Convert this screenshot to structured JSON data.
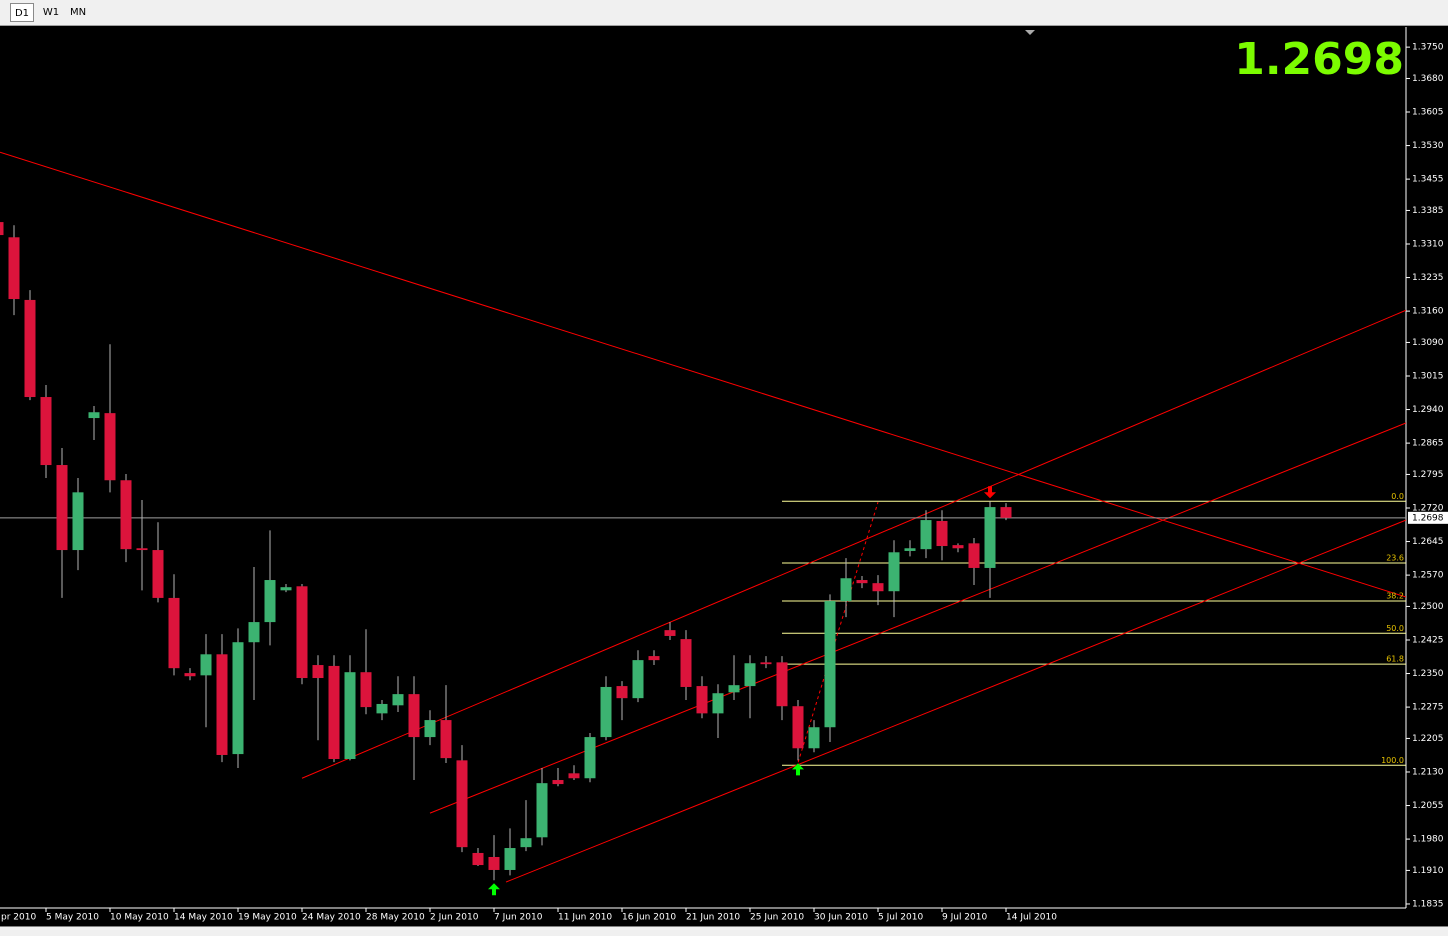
{
  "toolbar": {
    "timeframes": [
      "D1",
      "W1",
      "MN"
    ]
  },
  "chart_data": {
    "type": "candlestick",
    "categories": [
      "pr 2010",
      null,
      null,
      "5 May 2010",
      null,
      null,
      null,
      "10 May 2010",
      null,
      null,
      null,
      "14 May 2010",
      null,
      null,
      null,
      "19 May 2010",
      null,
      null,
      null,
      "24 May 2010",
      null,
      null,
      null,
      "28 May 2010",
      null,
      null,
      null,
      "2 Jun 2010",
      null,
      null,
      null,
      "7 Jun 2010",
      null,
      null,
      null,
      "11 Jun 2010",
      null,
      null,
      null,
      "16 Jun 2010",
      null,
      null,
      null,
      "21 Jun 2010",
      null,
      null,
      null,
      "25 Jun 2010",
      null,
      null,
      null,
      "30 Jun 2010",
      null,
      null,
      null,
      "5 Jul 2010",
      null,
      null,
      null,
      "9 Jul 2010",
      null,
      null,
      null,
      "14 Jul 2010"
    ],
    "open": [
      1.3359,
      1.3325,
      1.3185,
      1.2968,
      1.2816,
      1.2626,
      1.2921,
      1.2932,
      1.2782,
      1.263,
      1.2626,
      1.2519,
      1.2351,
      1.2346,
      1.2393,
      1.217,
      1.242,
      1.2465,
      1.2536,
      1.2545,
      1.2369,
      1.2367,
      1.2159,
      1.2353,
      1.2261,
      1.2279,
      1.2304,
      1.2208,
      1.2246,
      1.2156,
      1.1949,
      1.194,
      1.1911,
      1.1962,
      1.1984,
      1.2112,
      1.2127,
      1.2116,
      1.2208,
      1.2322,
      1.2295,
      1.2389,
      1.2447,
      1.2427,
      1.2322,
      1.2261,
      1.2308,
      1.2322,
      1.2375,
      1.2375,
      1.2277,
      1.2183,
      1.223,
      1.2512,
      1.2559,
      1.2552,
      1.2534,
      1.2624,
      1.2628,
      1.2691,
      1.2637,
      1.2641,
      1.2586,
      1.2722
    ],
    "high": [
      1.3363,
      1.3352,
      1.3207,
      1.2995,
      1.2854,
      1.2787,
      1.2948,
      1.3086,
      1.2796,
      1.2738,
      1.2688,
      1.2572,
      1.2362,
      1.2438,
      1.2438,
      1.2451,
      1.2588,
      1.267,
      1.255,
      1.255,
      1.2391,
      1.2391,
      1.2391,
      1.2449,
      1.2291,
      1.2344,
      1.2344,
      1.2268,
      1.2324,
      1.219,
      1.196,
      1.1989,
      1.2004,
      1.2067,
      1.2139,
      1.2139,
      1.2145,
      1.2217,
      1.2344,
      1.2333,
      1.2402,
      1.2402,
      1.2465,
      1.2447,
      1.2344,
      1.2326,
      1.2391,
      1.2391,
      1.2389,
      1.2389,
      1.2291,
      1.2246,
      1.2527,
      1.2608,
      1.2568,
      1.257,
      1.2648,
      1.2648,
      1.2715,
      1.2715,
      1.2641,
      1.2653,
      1.2735,
      1.2731
    ],
    "low": [
      1.3319,
      1.3151,
      1.2961,
      1.2787,
      1.2519,
      1.2581,
      1.2872,
      1.2755,
      1.2599,
      1.2536,
      1.2509,
      1.2346,
      1.2335,
      1.223,
      1.2152,
      1.2139,
      1.2291,
      1.2413,
      1.2532,
      1.2326,
      1.2201,
      1.2152,
      1.2156,
      1.2259,
      1.2246,
      1.2264,
      1.2112,
      1.219,
      1.215,
      1.1951,
      1.192,
      1.1888,
      1.1899,
      1.1953,
      1.1966,
      1.2098,
      1.2112,
      1.2107,
      1.2201,
      1.2246,
      1.2286,
      1.2369,
      1.2425,
      1.2291,
      1.225,
      1.2206,
      1.2291,
      1.225,
      1.2362,
      1.2246,
      1.2156,
      1.2174,
      1.2197,
      1.2476,
      1.2541,
      1.2503,
      1.2476,
      1.2612,
      1.2608,
      1.2603,
      1.2621,
      1.2548,
      1.2519,
      1.2693
    ],
    "close": [
      1.333,
      1.3187,
      1.2968,
      1.2816,
      1.2626,
      1.2755,
      1.2934,
      1.2782,
      1.2628,
      1.2626,
      1.2519,
      1.2362,
      1.2344,
      1.2393,
      1.2168,
      1.242,
      1.2465,
      1.2559,
      1.2543,
      1.234,
      1.234,
      1.2159,
      1.2353,
      1.2275,
      1.2282,
      1.2304,
      1.2208,
      1.2246,
      1.2161,
      1.1962,
      1.1922,
      1.1911,
      1.196,
      1.1982,
      1.2105,
      1.2103,
      1.2116,
      1.2208,
      1.232,
      1.2295,
      1.238,
      1.238,
      1.2434,
      1.232,
      1.2261,
      1.2306,
      1.2324,
      1.2373,
      1.2371,
      1.2277,
      1.2183,
      1.223,
      1.2512,
      1.2563,
      1.2552,
      1.2534,
      1.2621,
      1.263,
      1.2693,
      1.2635,
      1.263,
      1.2586,
      1.2722,
      1.2698
    ],
    "up_color": "#3cb371",
    "down_color": "#dc143c",
    "wick_color": "#b4b4b4",
    "current_price": 1.2698,
    "ylim": [
      1.1826,
      1.3795
    ],
    "yticks": [
      {
        "value": 1.375,
        "label": "1.3750"
      },
      {
        "value": 1.368,
        "label": "1.3680"
      },
      1.3605,
      {
        "value": 1.353,
        "label": "1.3530"
      },
      1.3455,
      1.3385,
      {
        "value": 1.331,
        "label": "1.3310"
      },
      1.3235,
      {
        "value": 1.316,
        "label": "1.3160"
      },
      {
        "value": 1.309,
        "label": "1.3090"
      },
      1.3015,
      {
        "value": 1.294,
        "label": "1.2940"
      },
      1.2865,
      1.2795,
      {
        "value": 1.272,
        "label": "1.2720"
      },
      1.2645,
      {
        "value": 1.257,
        "label": "1.2570"
      },
      {
        "value": 1.25,
        "label": "1.2500"
      },
      1.2425,
      {
        "value": 1.235,
        "label": "1.2350"
      },
      1.2275,
      1.2205,
      {
        "value": 1.213,
        "label": "1.2130"
      },
      1.2055,
      {
        "value": 1.198,
        "label": "1.1980"
      },
      {
        "value": 1.191,
        "label": "1.1910"
      },
      1.1835
    ],
    "trendlines": [
      {
        "start": [
          0.125,
          1.3515
        ],
        "end": [
          88,
          1.2521
        ],
        "color": "#ff0000",
        "dashed": false
      },
      {
        "start": [
          19,
          1.2116
        ],
        "end": [
          88,
          1.3162
        ],
        "color": "#ff0000",
        "dashed": false
      },
      {
        "start": [
          27,
          1.2038
        ],
        "end": [
          88,
          1.291
        ],
        "color": "#ff0000",
        "dashed": false
      },
      {
        "start": [
          31.75,
          1.1884
        ],
        "end": [
          88,
          1.2693
        ],
        "color": "#ff0000",
        "dashed": false
      },
      {
        "start": [
          49.9,
          1.2139
        ],
        "end": [
          55,
          1.2733
        ],
        "color": "#ff0000",
        "dashed": true
      }
    ],
    "fibonacci": {
      "start_index": 49,
      "color": "#ffff99",
      "label_color": "#e6c200",
      "levels": [
        {
          "label": "0.0",
          "price": 1.2735
        },
        {
          "label": "23.6",
          "price": 1.2597
        },
        {
          "label": "38.2",
          "price": 1.2512
        },
        {
          "label": "50.0",
          "price": 1.244
        },
        {
          "label": "61.8",
          "price": 1.2371
        },
        {
          "label": "100.0",
          "price": 1.2145
        }
      ]
    },
    "signals": [
      {
        "index": 31,
        "direction": "up",
        "color": "#00ff00"
      },
      {
        "index": 50,
        "direction": "up",
        "color": "#00ff00"
      },
      {
        "index": 62,
        "direction": "down",
        "color": "#ff0000"
      }
    ]
  }
}
